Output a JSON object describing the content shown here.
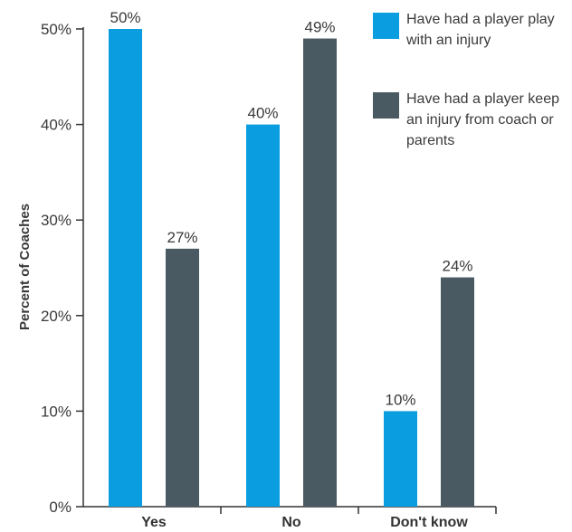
{
  "chart_data": {
    "type": "bar",
    "categories": [
      "Yes",
      "No",
      "Don't know"
    ],
    "series": [
      {
        "name": "Have had a player play with an injury",
        "values": [
          50,
          40,
          10
        ],
        "labels": [
          "50%",
          "40%",
          "10%"
        ],
        "color": "#0a9ee0"
      },
      {
        "name": "Have had a player keep an injury from coach or parents",
        "values": [
          27,
          49,
          24
        ],
        "labels": [
          "27%",
          "49%",
          "24%"
        ],
        "color": "#4a5a63"
      }
    ],
    "ylabel": "Percent of Coaches",
    "ylim": [
      0,
      50
    ],
    "yticks": [
      0,
      10,
      20,
      30,
      40,
      50
    ],
    "ytick_labels": [
      "0%",
      "10%",
      "20%",
      "30%",
      "40%",
      "50%"
    ],
    "grid": false,
    "legend_position": "top-right"
  }
}
